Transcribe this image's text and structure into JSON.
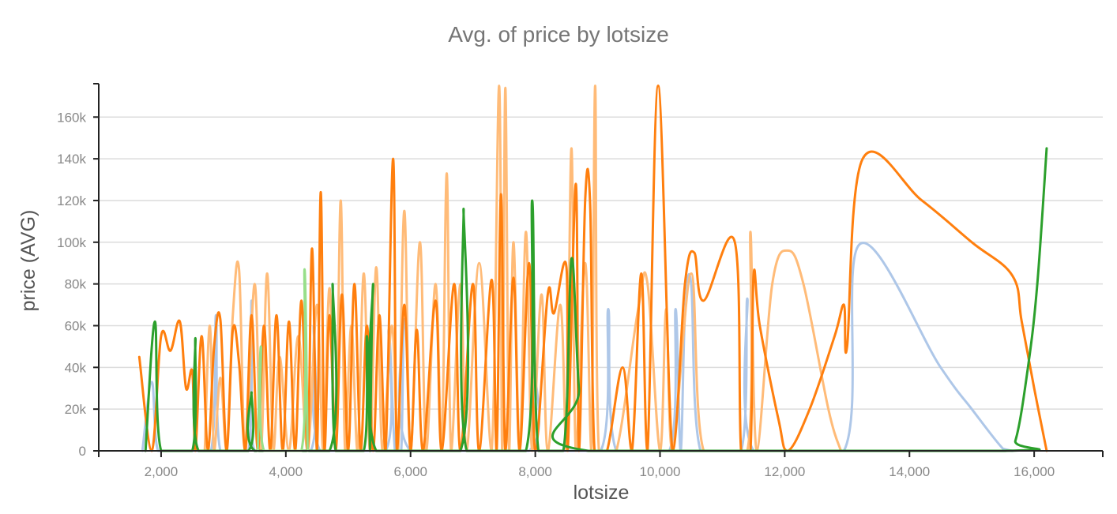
{
  "chart_data": {
    "type": "line",
    "title": "Avg. of price by lotsize",
    "xlabel": "lotsize",
    "ylabel": "price (AVG)",
    "xlim": [
      1000,
      17100
    ],
    "ylim": [
      0,
      176000
    ],
    "x_ticks": [
      2000,
      4000,
      6000,
      8000,
      10000,
      12000,
      14000,
      16000
    ],
    "x_tick_labels": [
      "2,000",
      "4,000",
      "6,000",
      "8,000",
      "10,000",
      "12,000",
      "14,000",
      "16,000"
    ],
    "y_ticks": [
      0,
      20000,
      40000,
      60000,
      80000,
      100000,
      120000,
      140000,
      160000
    ],
    "y_tick_labels": [
      "0",
      "20k",
      "40k",
      "60k",
      "80k",
      "100k",
      "120k",
      "140k",
      "160k"
    ],
    "grid": true,
    "legend": "none",
    "series": [
      {
        "color": "#aec7e8",
        "points": [
          [
            1700,
            0
          ],
          [
            1850,
            33000
          ],
          [
            1950,
            0
          ],
          [
            2250,
            0
          ],
          [
            2350,
            0
          ],
          [
            2800,
            0
          ],
          [
            2880,
            65000
          ],
          [
            2950,
            0
          ],
          [
            3400,
            0
          ],
          [
            3450,
            72000
          ],
          [
            3500,
            0
          ],
          [
            4400,
            0
          ],
          [
            4450,
            60000
          ],
          [
            4550,
            0
          ],
          [
            5600,
            0
          ],
          [
            5650,
            58000
          ],
          [
            5750,
            0
          ],
          [
            5850,
            0
          ],
          [
            5900,
            63000
          ],
          [
            6000,
            0
          ],
          [
            7900,
            0
          ],
          [
            7950,
            43000
          ],
          [
            8050,
            0
          ],
          [
            9050,
            0
          ],
          [
            9170,
            68000
          ],
          [
            9300,
            0
          ],
          [
            10150,
            0
          ],
          [
            10250,
            68000
          ],
          [
            10330,
            0
          ],
          [
            10400,
            65000
          ],
          [
            10500,
            80000
          ],
          [
            10650,
            0
          ],
          [
            11300,
            0
          ],
          [
            11400,
            73000
          ],
          [
            11500,
            0
          ],
          [
            12950,
            0
          ],
          [
            13200,
            99000
          ],
          [
            14500,
            40000
          ],
          [
            15000,
            20000
          ],
          [
            15500,
            1000
          ],
          [
            15650,
            0
          ]
        ]
      },
      {
        "color": "#ffbb78",
        "points": [
          [
            2700,
            0
          ],
          [
            2780,
            60000
          ],
          [
            2850,
            0
          ],
          [
            2950,
            35000
          ],
          [
            3050,
            0
          ],
          [
            3150,
            65000
          ],
          [
            3250,
            87000
          ],
          [
            3350,
            0
          ],
          [
            3500,
            80000
          ],
          [
            3600,
            0
          ],
          [
            3700,
            85000
          ],
          [
            3800,
            0
          ],
          [
            3900,
            45000
          ],
          [
            4050,
            0
          ],
          [
            4200,
            55000
          ],
          [
            4350,
            0
          ],
          [
            4500,
            70000
          ],
          [
            4600,
            0
          ],
          [
            4700,
            78000
          ],
          [
            4800,
            0
          ],
          [
            4880,
            120000
          ],
          [
            4950,
            0
          ],
          [
            5050,
            60000
          ],
          [
            5150,
            0
          ],
          [
            5250,
            85000
          ],
          [
            5350,
            0
          ],
          [
            5450,
            88000
          ],
          [
            5550,
            0
          ],
          [
            5700,
            60000
          ],
          [
            5800,
            0
          ],
          [
            5900,
            115000
          ],
          [
            6000,
            0
          ],
          [
            6150,
            100000
          ],
          [
            6250,
            0
          ],
          [
            6400,
            80000
          ],
          [
            6500,
            0
          ],
          [
            6580,
            133000
          ],
          [
            6650,
            0
          ],
          [
            6800,
            80000
          ],
          [
            6900,
            0
          ],
          [
            7100,
            90000
          ],
          [
            7300,
            0
          ],
          [
            7420,
            175000
          ],
          [
            7470,
            0
          ],
          [
            7520,
            174000
          ],
          [
            7580,
            0
          ],
          [
            7650,
            100000
          ],
          [
            7750,
            0
          ],
          [
            7850,
            105000
          ],
          [
            7950,
            0
          ],
          [
            8100,
            75000
          ],
          [
            8200,
            0
          ],
          [
            8400,
            70000
          ],
          [
            8500,
            0
          ],
          [
            8580,
            145000
          ],
          [
            8650,
            0
          ],
          [
            8800,
            90000
          ],
          [
            8900,
            0
          ],
          [
            8960,
            175000
          ],
          [
            9020,
            0
          ],
          [
            9300,
            0
          ],
          [
            9650,
            68000
          ],
          [
            9800,
            80000
          ],
          [
            10000,
            0
          ],
          [
            10100,
            68000
          ],
          [
            10200,
            0
          ],
          [
            10500,
            85000
          ],
          [
            10700,
            0
          ],
          [
            11400,
            0
          ],
          [
            11450,
            105000
          ],
          [
            11550,
            0
          ],
          [
            11800,
            80000
          ],
          [
            12050,
            96000
          ],
          [
            12300,
            80000
          ],
          [
            12700,
            20000
          ],
          [
            12900,
            0
          ]
        ]
      },
      {
        "color": "#ff7f0e",
        "points": [
          [
            1650,
            45000
          ],
          [
            1850,
            0
          ],
          [
            2000,
            55000
          ],
          [
            2150,
            48000
          ],
          [
            2300,
            62000
          ],
          [
            2400,
            30000
          ],
          [
            2500,
            38000
          ],
          [
            2550,
            0
          ],
          [
            2650,
            55000
          ],
          [
            2750,
            0
          ],
          [
            2850,
            50000
          ],
          [
            2950,
            63000
          ],
          [
            3050,
            0
          ],
          [
            3150,
            58000
          ],
          [
            3250,
            42000
          ],
          [
            3350,
            0
          ],
          [
            3450,
            65000
          ],
          [
            3550,
            0
          ],
          [
            3650,
            60000
          ],
          [
            3750,
            0
          ],
          [
            3850,
            65000
          ],
          [
            3950,
            0
          ],
          [
            4050,
            62000
          ],
          [
            4150,
            0
          ],
          [
            4250,
            72000
          ],
          [
            4350,
            0
          ],
          [
            4420,
            97000
          ],
          [
            4500,
            0
          ],
          [
            4560,
            124000
          ],
          [
            4620,
            0
          ],
          [
            4700,
            65000
          ],
          [
            4800,
            0
          ],
          [
            4900,
            75000
          ],
          [
            5000,
            0
          ],
          [
            5100,
            80000
          ],
          [
            5200,
            0
          ],
          [
            5300,
            60000
          ],
          [
            5400,
            0
          ],
          [
            5500,
            65000
          ],
          [
            5600,
            0
          ],
          [
            5720,
            140000
          ],
          [
            5780,
            0
          ],
          [
            5900,
            70000
          ],
          [
            6000,
            0
          ],
          [
            6100,
            58000
          ],
          [
            6200,
            0
          ],
          [
            6400,
            72000
          ],
          [
            6500,
            0
          ],
          [
            6700,
            80000
          ],
          [
            6800,
            0
          ],
          [
            7000,
            80000
          ],
          [
            7100,
            0
          ],
          [
            7300,
            82000
          ],
          [
            7380,
            0
          ],
          [
            7450,
            123000
          ],
          [
            7520,
            0
          ],
          [
            7650,
            83000
          ],
          [
            7750,
            0
          ],
          [
            7900,
            90000
          ],
          [
            8000,
            0
          ],
          [
            8200,
            75000
          ],
          [
            8300,
            66000
          ],
          [
            8500,
            88000
          ],
          [
            8520,
            0
          ],
          [
            8650,
            128000
          ],
          [
            8700,
            0
          ],
          [
            8800,
            120000
          ],
          [
            8880,
            118000
          ],
          [
            8950,
            0
          ],
          [
            9150,
            0
          ],
          [
            9400,
            40000
          ],
          [
            9550,
            0
          ],
          [
            9700,
            85000
          ],
          [
            9800,
            0
          ],
          [
            9970,
            175000
          ],
          [
            10200,
            0
          ],
          [
            10400,
            80000
          ],
          [
            10550,
            95000
          ],
          [
            10700,
            72000
          ],
          [
            11200,
            100000
          ],
          [
            11300,
            0
          ],
          [
            11450,
            0
          ],
          [
            11500,
            84000
          ],
          [
            11600,
            60000
          ],
          [
            11900,
            15000
          ],
          [
            12050,
            0
          ],
          [
            12400,
            20000
          ],
          [
            12800,
            55000
          ],
          [
            12950,
            70000
          ],
          [
            13000,
            50000
          ],
          [
            13250,
            140000
          ],
          [
            14200,
            120000
          ],
          [
            15000,
            100000
          ],
          [
            15650,
            84000
          ],
          [
            15800,
            62000
          ],
          [
            16000,
            30000
          ],
          [
            16200,
            0
          ]
        ]
      },
      {
        "color": "#2ca02c",
        "points": [
          [
            1750,
            0
          ],
          [
            1900,
            62000
          ],
          [
            2000,
            0
          ],
          [
            2500,
            0
          ],
          [
            2550,
            54000
          ],
          [
            2600,
            0
          ],
          [
            3400,
            0
          ],
          [
            3450,
            28000
          ],
          [
            3500,
            0
          ],
          [
            4700,
            0
          ],
          [
            4750,
            80000
          ],
          [
            4800,
            0
          ],
          [
            5250,
            0
          ],
          [
            5300,
            55000
          ],
          [
            5350,
            0
          ],
          [
            5350,
            0
          ],
          [
            5400,
            80000
          ],
          [
            5450,
            0
          ],
          [
            6800,
            0
          ],
          [
            6850,
            116000
          ],
          [
            6900,
            0
          ],
          [
            7850,
            0
          ],
          [
            7950,
            120000
          ],
          [
            8050,
            0
          ],
          [
            8450,
            0
          ],
          [
            8580,
            92000
          ],
          [
            8700,
            30000
          ],
          [
            8850,
            0
          ],
          [
            15500,
            0
          ],
          [
            15700,
            5000
          ],
          [
            15900,
            40000
          ],
          [
            16050,
            80000
          ],
          [
            16200,
            145000
          ]
        ]
      },
      {
        "color": "#98df8a",
        "points": [
          [
            3550,
            0
          ],
          [
            3600,
            50000
          ],
          [
            3650,
            0
          ],
          [
            4250,
            0
          ],
          [
            4300,
            87000
          ],
          [
            4350,
            0
          ]
        ]
      }
    ]
  }
}
